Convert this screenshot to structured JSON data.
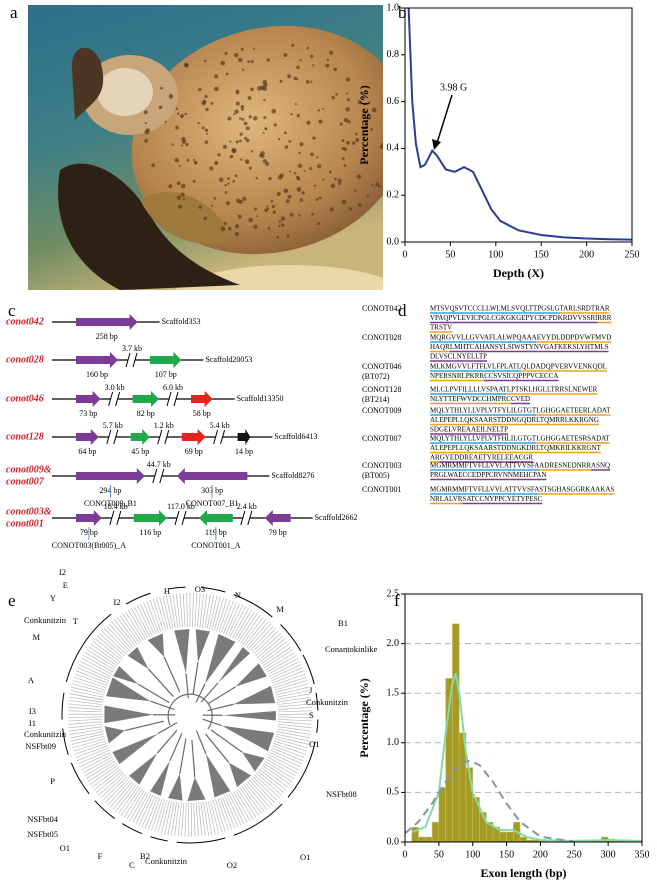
{
  "panel_labels": [
    "a",
    "b",
    "c",
    "d",
    "e",
    "f"
  ],
  "chart_data": [
    {
      "type": "line",
      "x_label": "Depth (X)",
      "y_label": "Percentage (%)",
      "annotation": "3.98 G",
      "x": [
        4,
        8,
        12,
        17,
        22,
        30,
        35,
        45,
        55,
        65,
        75,
        85,
        95,
        105,
        125,
        150,
        175,
        200,
        225,
        250
      ],
      "series": [
        {
          "color": "#2b3d91",
          "values": [
            1.0,
            0.6,
            0.42,
            0.32,
            0.33,
            0.39,
            0.37,
            0.31,
            0.3,
            0.32,
            0.3,
            0.22,
            0.14,
            0.09,
            0.05,
            0.03,
            0.02,
            0.015,
            0.012,
            0.01
          ]
        }
      ],
      "xlim": [
        0,
        250
      ],
      "ylim": [
        0,
        1.0
      ],
      "xticks": [
        0,
        50,
        100,
        150,
        200,
        250
      ],
      "yticks": [
        {
          "value": 0,
          "label": "0.0"
        },
        0.2,
        0.4,
        0.6,
        0.8,
        {
          "value": 1,
          "label": "1.0"
        }
      ],
      "grid": false
    },
    {
      "type": "histogram",
      "x_label": "Exon length (bp)",
      "y_label": "Percentage (%)",
      "bins": [
        0,
        10,
        20,
        30,
        40,
        50,
        60,
        70,
        80,
        90,
        100,
        110,
        120,
        130,
        140,
        150,
        160,
        170,
        180,
        190,
        200,
        210,
        220,
        230,
        240,
        250,
        260,
        270,
        280,
        290,
        300,
        310,
        320,
        330,
        340,
        350
      ],
      "values": [
        0,
        0.15,
        0.05,
        0.05,
        0.2,
        0.55,
        1.65,
        2.2,
        1.1,
        0.75,
        0.45,
        0.3,
        0.2,
        0.15,
        0.1,
        0.1,
        0.2,
        0.05,
        0.02,
        0.02,
        0.02,
        0,
        0,
        0.01,
        0,
        0.02,
        0.01,
        0.01,
        0.02,
        0.05,
        0.03,
        0.02,
        0.01,
        0,
        0
      ],
      "color": "#a59c25",
      "lines": [
        {
          "color": "#86d9a6",
          "dash": false,
          "x": [
            10,
            30,
            50,
            60,
            70,
            75,
            80,
            90,
            100,
            120,
            140,
            160,
            180,
            200,
            250,
            300,
            350
          ],
          "values": [
            0.1,
            0.15,
            0.5,
            1.1,
            1.6,
            1.7,
            1.5,
            0.9,
            0.5,
            0.2,
            0.12,
            0.12,
            0.05,
            0.02,
            0.01,
            0.02,
            0.01
          ]
        },
        {
          "color": "#8791a8",
          "dash": true,
          "x": [
            0,
            20,
            40,
            60,
            80,
            95,
            110,
            130,
            150,
            170,
            200,
            250
          ],
          "values": [
            0.088,
            0.204,
            0.388,
            0.606,
            0.776,
            0.82,
            0.776,
            0.606,
            0.388,
            0.204,
            0.054,
            0.002
          ]
        }
      ],
      "xlim": [
        0,
        350
      ],
      "ylim": [
        0,
        2.5
      ],
      "xticks": [
        0,
        50,
        100,
        150,
        200,
        250,
        300,
        350
      ],
      "yticks": [
        {
          "value": 0,
          "label": "0.0"
        },
        0.5,
        {
          "value": 1,
          "label": "1.0"
        },
        1.5,
        {
          "value": 2,
          "label": "2.0"
        },
        2.5
      ],
      "grid": true
    }
  ],
  "panel_c": {
    "rows": [
      {
        "label": [
          "conot042"
        ],
        "scaffold": "Scaffold353",
        "elements": [
          {
            "exon": "258 bp",
            "color": "#7b3c97",
            "reverse": false
          }
        ]
      },
      {
        "label": [
          "conot028"
        ],
        "scaffold": "Scaffold20053",
        "elements": [
          {
            "exon": "160 bp",
            "color": "#7b3c97",
            "reverse": false
          },
          {
            "gap": "3.7 kb"
          },
          {
            "exon": "107 bp",
            "color": "#1fa94a",
            "reverse": false
          }
        ]
      },
      {
        "label": [
          "conot046"
        ],
        "scaffold": "Scaffold13350",
        "elements": [
          {
            "exon": "73 bp",
            "color": "#7b3c97",
            "reverse": false
          },
          {
            "gap": "3.0 kb"
          },
          {
            "exon": "82 bp",
            "color": "#1fa94a",
            "reverse": false
          },
          {
            "gap": "6.0 kb"
          },
          {
            "exon": "58 bp",
            "color": "#e8231e",
            "reverse": false
          }
        ]
      },
      {
        "label": [
          "conot128"
        ],
        "scaffold": "Scaffold6413",
        "elements": [
          {
            "exon": "64 bp",
            "color": "#7b3c97",
            "reverse": false
          },
          {
            "gap": "5.7 kb"
          },
          {
            "exon": "45 bp",
            "color": "#1fa94a",
            "reverse": false
          },
          {
            "gap": "1.2 kb"
          },
          {
            "exon": "69 bp",
            "color": "#e8231e",
            "reverse": false
          },
          {
            "gap": "5.4 kb"
          },
          {
            "exon": "14 bp",
            "color": "#111111",
            "reverse": false
          }
        ]
      },
      {
        "label": [
          "conot009&",
          "conot007"
        ],
        "scaffold": "Scaffold8276",
        "elements": [
          {
            "exon": "294 bp",
            "color": "#7b3c97",
            "reverse": false,
            "note": "CONOT009_B1"
          },
          {
            "gap": "44.7 kb"
          },
          {
            "exon": "303 bp",
            "color": "#7b3c97",
            "reverse": true,
            "note": "CONOT007_B1"
          }
        ]
      },
      {
        "label": [
          "conot003&",
          "conot001"
        ],
        "scaffold": "Scaffold2662",
        "elements": [
          {
            "exon": "79 bp",
            "color": "#7b3c97",
            "reverse": false,
            "note": "CONOT003(Bt005)_A"
          },
          {
            "gap": "18.4 kb"
          },
          {
            "exon": "116 bp",
            "color": "#1fa94a",
            "reverse": false
          },
          {
            "gap": "117.0 kb"
          },
          {
            "exon": "119 bp",
            "color": "#1fa94a",
            "reverse": true,
            "note": "CONOT001_A"
          },
          {
            "gap": "2.4 kb"
          },
          {
            "exon": "79 bp",
            "color": "#7b3c97",
            "reverse": true
          }
        ]
      }
    ]
  },
  "panel_d": {
    "rows": [
      {
        "name": [
          "CONOT042"
        ],
        "lines": [
          [
            {
              "text": "MTSVQSVTCCCLLWLMLSVQLTTPGSLG",
              "color": "#2aa5d8"
            },
            {
              "text": "TARLSRDTRAR",
              "color": "#f0a020"
            }
          ],
          [
            {
              "text": "VPAQPVLEVICPGLCGKGKGEPYCDCPDKRDVVSSRI",
              "color": "#7b3c97"
            },
            {
              "text": "RRR",
              "color": "#f0a020"
            }
          ],
          [
            {
              "text": "TRSTV",
              "color": "#f0a020"
            }
          ]
        ]
      },
      {
        "name": [
          "CONOT028"
        ],
        "lines": [
          [
            {
              "text": "MQRGVVLLGVVAFLALWPQAAA",
              "color": "#2aa5d8"
            },
            {
              "text": "EVYDLDDPDVWFMVD",
              "color": "#f0a020"
            }
          ],
          [
            {
              "text": "HAQR",
              "color": "#f0a020"
            },
            {
              "text": "LMHTCAHANSYLSIWSTYNVGAFKEKSLYHTMLS",
              "color": "#7b3c97"
            }
          ],
          [
            {
              "text": "DLVSCLNYELLTP",
              "color": "#7b3c97"
            }
          ]
        ]
      },
      {
        "name": [
          "CONOT046",
          "(BT072)"
        ],
        "lines": [
          [
            {
              "text": "MLKMGVVLFTFLVLFPLATL",
              "color": "#2aa5d8"
            },
            {
              "text": "QLDADQPVERVVENKQDL",
              "color": "#f0a020"
            }
          ],
          [
            {
              "text": "NPERSNRLPKRR",
              "color": "#f0a020"
            },
            {
              "text": "CCSVSICQPPPVCECCA",
              "color": "#7b3c97"
            }
          ]
        ]
      },
      {
        "name": [
          "CONOT128",
          "(BT214)"
        ],
        "lines": [
          [
            {
              "text": "MLCLPVFILLLLVSPAAT",
              "color": "#2aa5d8"
            },
            {
              "text": "LPTSKLHGLLTRRSLNEWER",
              "color": "#f0a020"
            }
          ],
          [
            {
              "text": "NLYTTEFWVDCCHMPRC",
              "color": "#f0a020"
            },
            {
              "text": "CVED",
              "color": "#7b3c97"
            }
          ]
        ]
      },
      {
        "name": [
          "CONOT009"
        ],
        "lines": [
          [
            {
              "text": "MQLYTHLYLLVPLVTFYLILGTGT",
              "color": "#2aa5d8"
            },
            {
              "text": "LGHGGAETEERLADAT",
              "color": "#f0a020"
            }
          ],
          [
            {
              "text": "ALEPEPLLQKSAARSTDDNGQDRLTQMRRLKKRGNG",
              "color": "#f0a020"
            }
          ],
          [
            {
              "text": "SDGELVREAAEILNELTP",
              "color": "#7b3c97"
            }
          ]
        ]
      },
      {
        "name": [
          "CONOT007"
        ],
        "lines": [
          [
            {
              "text": "MQLYTHLYLLVPLVTFHLILGTGT",
              "color": "#2aa5d8"
            },
            {
              "text": "LGHGGAETESRSADAT",
              "color": "#f0a020"
            }
          ],
          [
            {
              "text": "ALEPEPLLQKSAARSTDDNGKDRLTQMKRILKKRGNT",
              "color": "#f0a020"
            }
          ],
          [
            {
              "text": "AR",
              "color": "#f0a020"
            },
            {
              "text": "GYEDDREAETYRELEEACGR",
              "color": "#7b3c97"
            }
          ]
        ]
      },
      {
        "name": [
          "CONOT003",
          "(BT005)"
        ],
        "lines": [
          [
            {
              "text": "MGMRMMFTVFLLVVLATTVVSFA",
              "color": "#2aa5d8"
            },
            {
              "text": "ADRESNEDNRR",
              "color": "#f0a020"
            },
            {
              "text": "ASNQ",
              "color": "#7b3c97"
            }
          ],
          [
            {
              "text": "PRGLWAECCEDPPCRVNNMEHCPAN",
              "color": "#7b3c97"
            }
          ]
        ]
      },
      {
        "name": [
          "CONOT001"
        ],
        "lines": [
          [
            {
              "text": "MGMRMMFTVFLLVVLATTVVSFA",
              "color": "#2aa5d8"
            },
            {
              "text": "STSGHASGGRKAAKAS",
              "color": "#f0a020"
            }
          ],
          [
            {
              "text": "NRLALVR",
              "color": "#f0a020"
            },
            {
              "text": "SATCCNYPPCYETYPESC",
              "color": "#7b3c97"
            }
          ]
        ]
      }
    ]
  },
  "panel_e": {
    "clades": [
      "T",
      "I2",
      "H",
      "O3",
      "N",
      "M",
      "B1",
      "Conantokinlike",
      "J",
      "Conkunitzin",
      "S",
      "O1",
      "NSFbt08",
      "O1",
      "O2",
      "Conkunitzin",
      "B2",
      "C",
      "F",
      "O1",
      "NSFbt05",
      "NSFbt04",
      "P",
      "NSFbt09",
      "Conkunitzin",
      "I1",
      "I3",
      "A",
      "M",
      "Conkunitzin",
      "Y",
      "E",
      "I2"
    ]
  }
}
